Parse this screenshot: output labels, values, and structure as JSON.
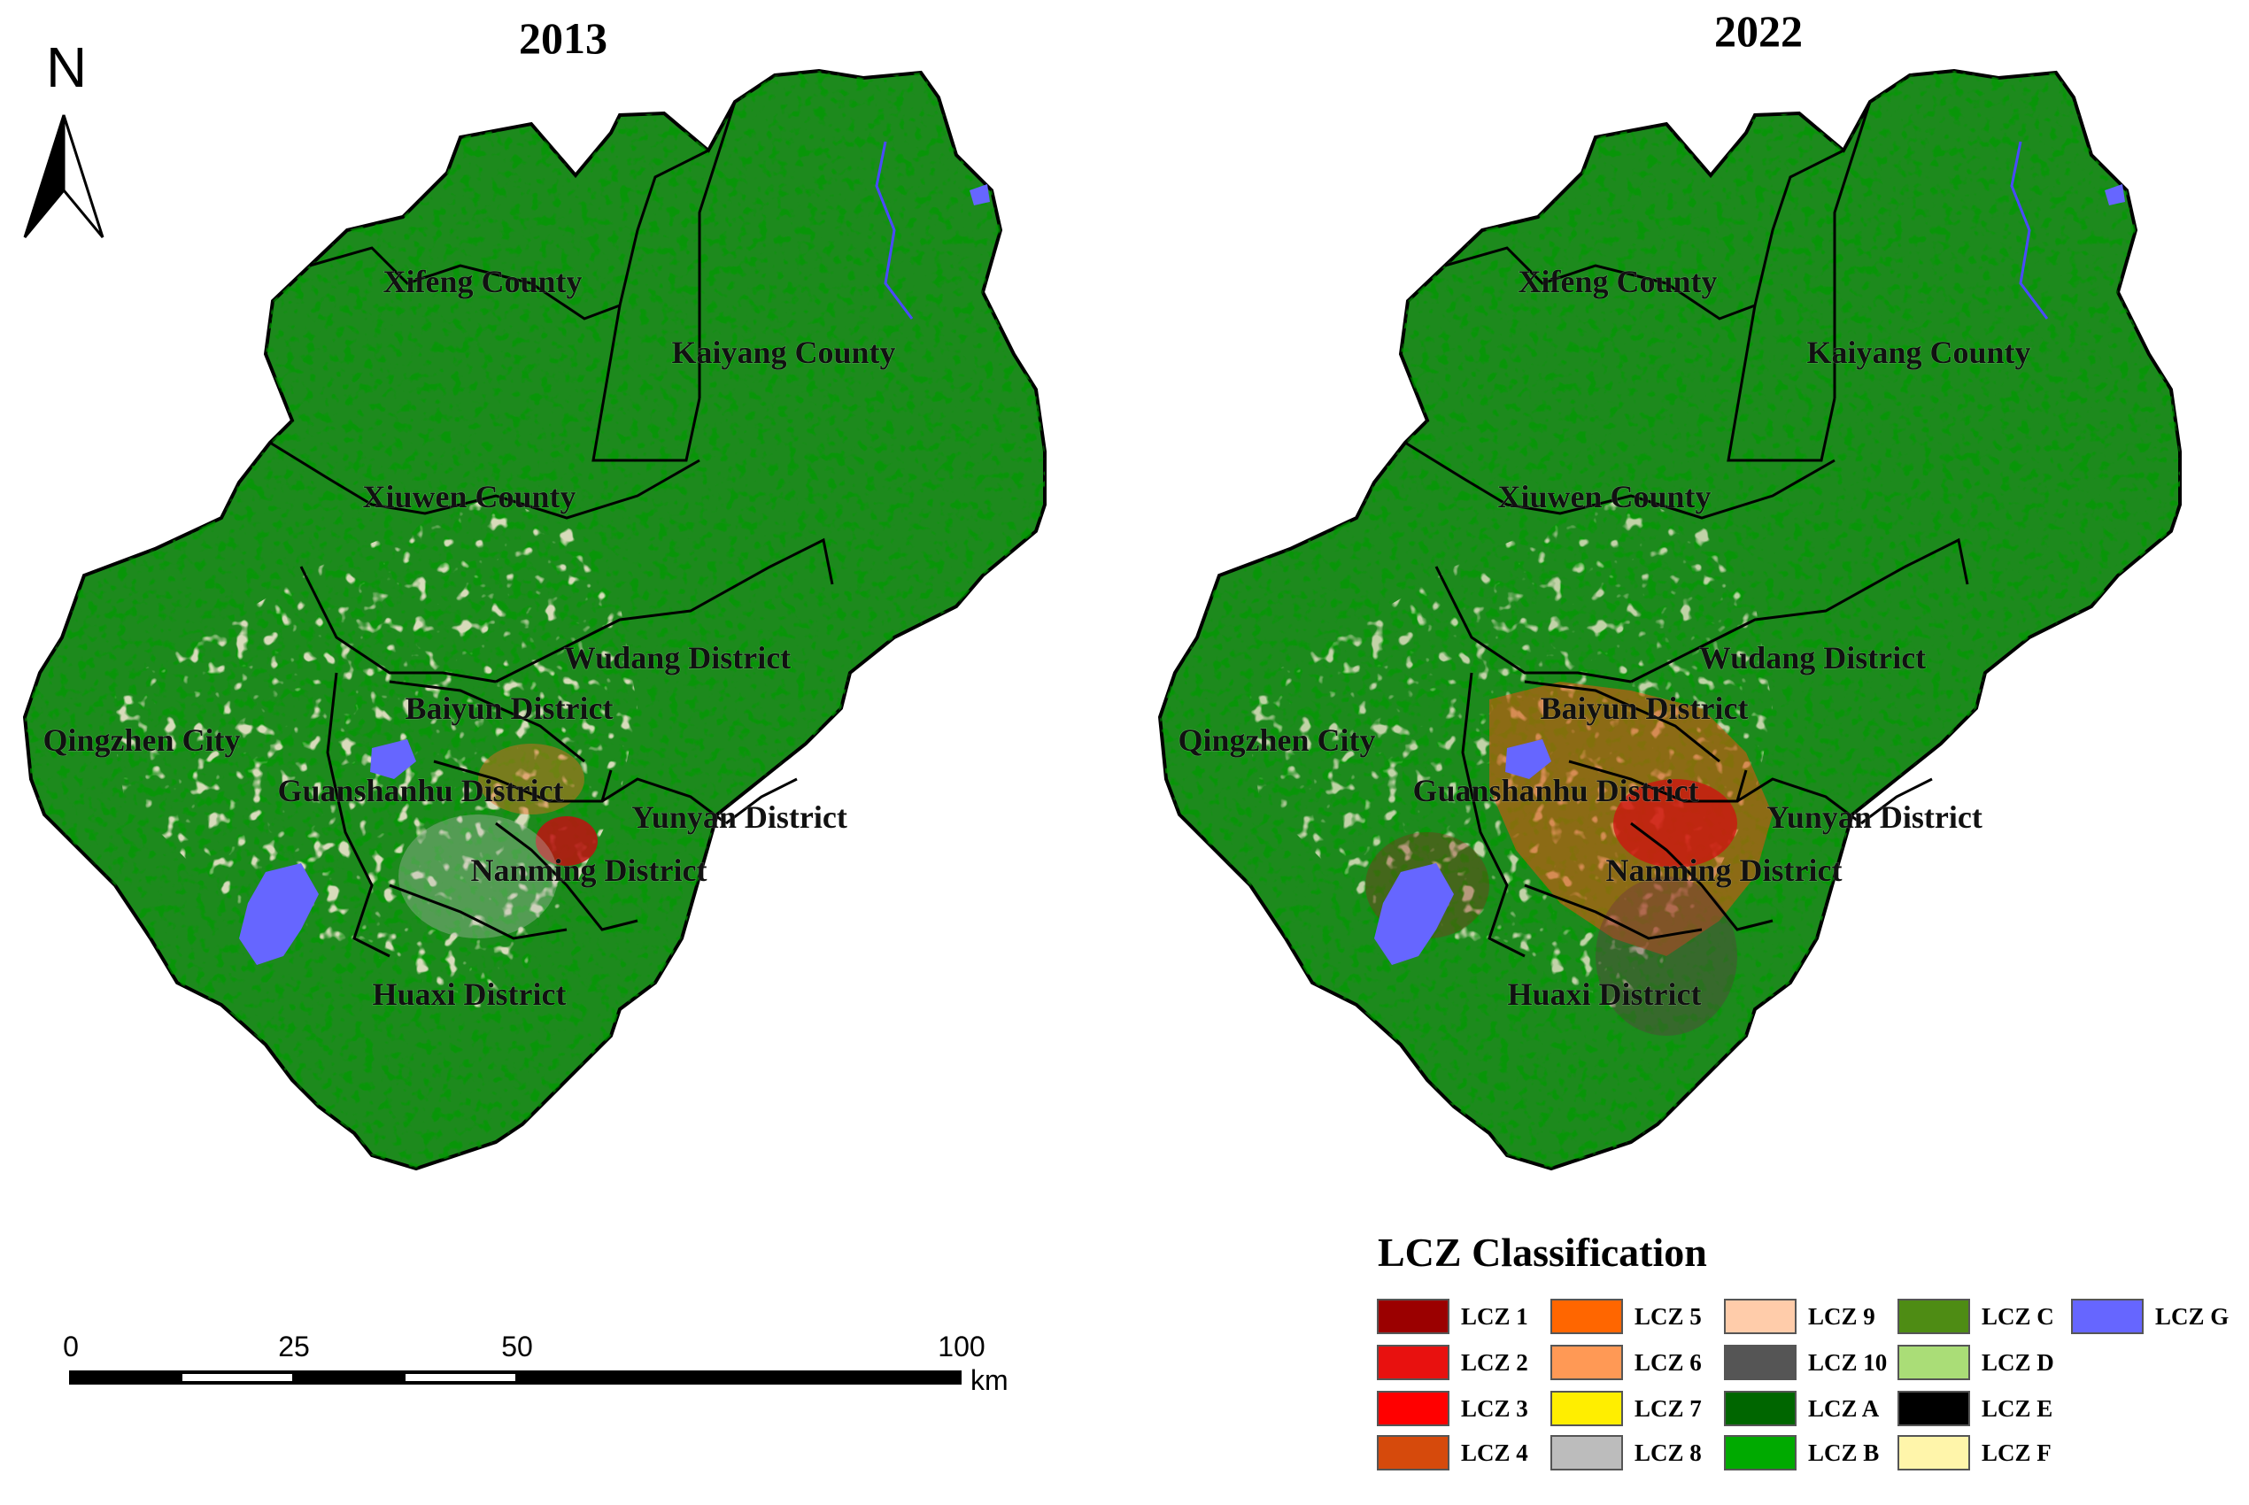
{
  "maps": [
    {
      "title": "2013",
      "labels": [
        "Xifeng County",
        "Kaiyang County",
        "Xiuwen County",
        "Wudang District",
        "Baiyun District",
        "Qingzhen City",
        "Guanshanhu District",
        "Yunyan District",
        "Nanming District",
        "Huaxi District"
      ]
    },
    {
      "title": "2022",
      "labels": [
        "Xifeng County",
        "Kaiyang County",
        "Xiuwen County",
        "Wudang District",
        "Baiyun District",
        "Qingzhen City",
        "Guanshanhu District",
        "Yunyan District",
        "Nanming District",
        "Huaxi District"
      ]
    }
  ],
  "north_arrow": {
    "letter": "N"
  },
  "scale_bar": {
    "ticks": [
      "0",
      "25",
      "50",
      "100"
    ],
    "unit": "km"
  },
  "legend": {
    "title": "LCZ Classification",
    "items": [
      {
        "label": "LCZ 1",
        "color": "#9b0000"
      },
      {
        "label": "LCZ 2",
        "color": "#e8110f"
      },
      {
        "label": "LCZ 3",
        "color": "#ff0000"
      },
      {
        "label": "LCZ 4",
        "color": "#d64a0c"
      },
      {
        "label": "LCZ 5",
        "color": "#ff6600"
      },
      {
        "label": "LCZ 6",
        "color": "#ff9955"
      },
      {
        "label": "LCZ 7",
        "color": "#ffee00"
      },
      {
        "label": "LCZ 8",
        "color": "#bcbcbc"
      },
      {
        "label": "LCZ 9",
        "color": "#ffccaa"
      },
      {
        "label": "LCZ 10",
        "color": "#555555"
      },
      {
        "label": "LCZ A",
        "color": "#006600"
      },
      {
        "label": "LCZ B",
        "color": "#00aa00"
      },
      {
        "label": "LCZ C",
        "color": "#4e8c14"
      },
      {
        "label": "LCZ D",
        "color": "#aadd77"
      },
      {
        "label": "LCZ E",
        "color": "#000000"
      },
      {
        "label": "LCZ F",
        "color": "#fff5aa"
      },
      {
        "label": "LCZ G",
        "color": "#6666ff"
      }
    ]
  }
}
